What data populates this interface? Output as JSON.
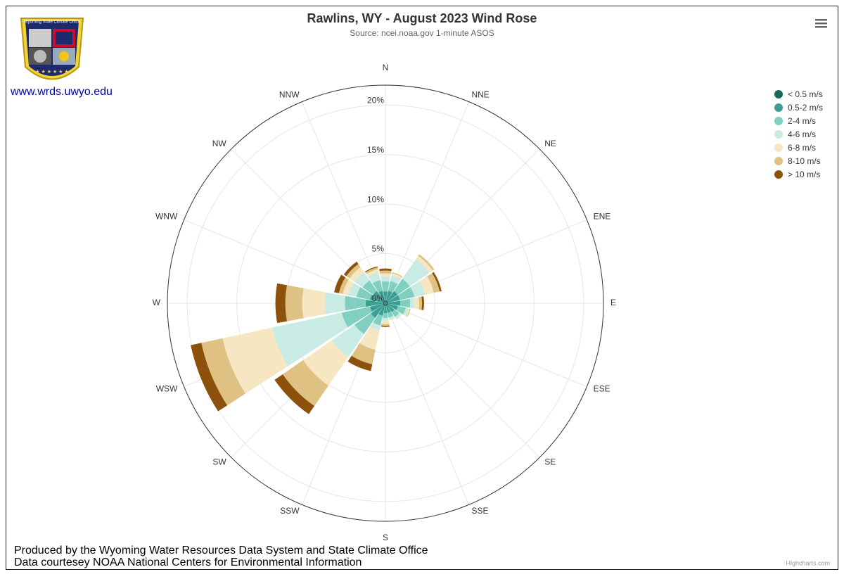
{
  "logo": {
    "label": "Wyoming State Climate Office",
    "link": "www.wrds.uwyo.edu"
  },
  "chart_data": {
    "type": "windrose",
    "title": "Rawlins, WY - August 2023 Wind Rose",
    "subtitle": "Source: ncei.noaa.gov 1-minute ASOS",
    "categories": [
      "N",
      "NNE",
      "NE",
      "ENE",
      "E",
      "ESE",
      "SE",
      "SSE",
      "S",
      "SSW",
      "SW",
      "WSW",
      "W",
      "WNW",
      "NW",
      "NNW"
    ],
    "ylim": [
      0,
      22
    ],
    "yticks": [
      {
        "value": 0,
        "label": "0%"
      },
      {
        "value": 5,
        "label": "5%"
      },
      {
        "value": 10,
        "label": "10%"
      },
      {
        "value": 15,
        "label": "15%"
      },
      {
        "value": 20,
        "label": "20%"
      }
    ],
    "grid": true,
    "legend": "top-right",
    "series": [
      {
        "name": "< 0.5 m/s",
        "color": "#17695c",
        "values": [
          0.3,
          0.3,
          0.3,
          0.3,
          0.3,
          0.3,
          0.3,
          0.3,
          0.3,
          0.3,
          0.3,
          0.3,
          0.3,
          0.3,
          0.3,
          0.3
        ]
      },
      {
        "name": "0.5-2 m/s",
        "color": "#3a9e93",
        "values": [
          0.9,
          1.0,
          1.2,
          1.2,
          1.2,
          1.0,
          0.8,
          0.7,
          0.7,
          1.0,
          1.5,
          1.3,
          1.7,
          1.3,
          1.2,
          1.0
        ]
      },
      {
        "name": "2-4 m/s",
        "color": "#80cfc0",
        "values": [
          1.0,
          1.0,
          1.5,
          1.5,
          1.0,
          0.8,
          0.6,
          0.5,
          0.5,
          1.0,
          2.0,
          2.9,
          2.1,
          1.4,
          1.3,
          1.1
        ]
      },
      {
        "name": "4-6 m/s",
        "color": "#c8ebe3",
        "values": [
          0.5,
          0.6,
          2.4,
          1.1,
          0.4,
          0.3,
          0.2,
          0.2,
          0.3,
          0.5,
          2.8,
          7.2,
          2.0,
          0.8,
          1.0,
          0.8
        ]
      },
      {
        "name": "6-8 m/s",
        "color": "#f6e6c2",
        "values": [
          0.3,
          0.2,
          0.4,
          0.9,
          0.5,
          0.1,
          0.1,
          0.1,
          0.3,
          2.0,
          3.5,
          5.1,
          2.3,
          0.6,
          0.6,
          0.3
        ]
      },
      {
        "name": "8-10 m/s",
        "color": "#dfc283",
        "values": [
          0.3,
          0.1,
          0.2,
          0.6,
          0.3,
          0.1,
          0,
          0,
          0.2,
          1.5,
          2.5,
          2.2,
          1.7,
          0.4,
          0.4,
          0.2
        ]
      },
      {
        "name": "> 10 m/s",
        "color": "#8c510a",
        "values": [
          0.2,
          0,
          0,
          0.2,
          0.2,
          0,
          0,
          0,
          0.1,
          0.7,
          1.0,
          1.1,
          1.0,
          0.5,
          0.3,
          0.1
        ]
      }
    ]
  },
  "footer": [
    "Produced by the Wyoming Water Resources Data System and State Climate Office",
    "Data courtesey NOAA National Centers for Environmental Information"
  ],
  "credit": "Highcharts.com"
}
